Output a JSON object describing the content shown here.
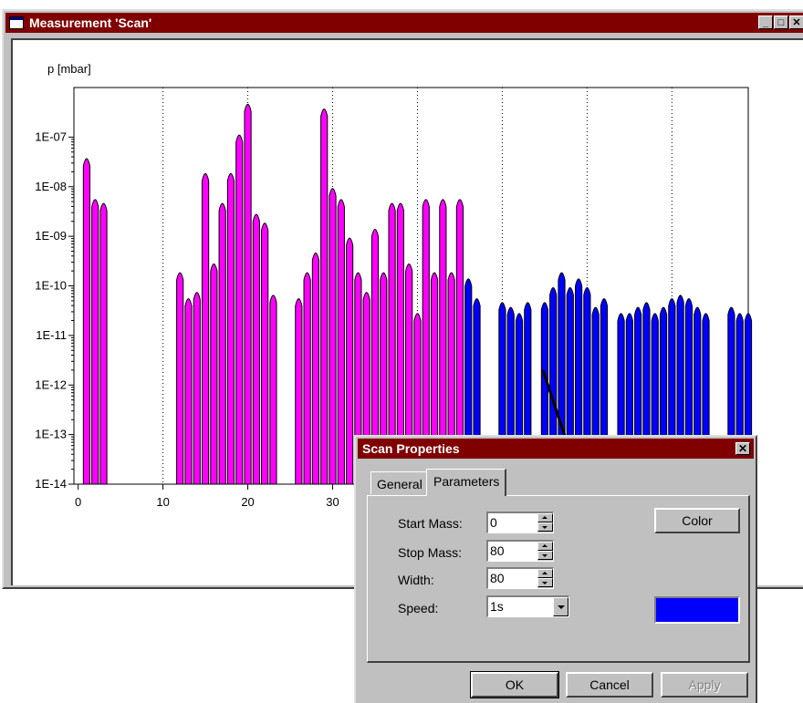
{
  "window": {
    "title": "Measurement 'Scan'",
    "min_label": "_",
    "max_label": "□",
    "close_label": "✕"
  },
  "chart_data": {
    "type": "bar",
    "ylabel": "p [mbar]",
    "xlabel": "",
    "y_scale": "log",
    "ylim": [
      1e-14,
      1e-06
    ],
    "xlim": [
      -0.5,
      79
    ],
    "y_ticks": [
      "1E-14",
      "1E-13",
      "1E-12",
      "1E-11",
      "1E-10",
      "1E-09",
      "1E-08",
      "1E-07"
    ],
    "x_ticks": [
      "0",
      "10",
      "20",
      "30"
    ],
    "grid": "dotted vertical lines every 10 mass units",
    "series": [
      {
        "color": "#ff00ff",
        "points": [
          [
            1,
            4e-08
          ],
          [
            2,
            6e-09
          ],
          [
            3,
            5e-09
          ],
          [
            12,
            2e-10
          ],
          [
            13,
            6e-11
          ],
          [
            14,
            8e-11
          ],
          [
            15,
            2e-08
          ],
          [
            16,
            3e-10
          ],
          [
            17,
            5e-09
          ],
          [
            18,
            2e-08
          ],
          [
            19,
            1.2e-07
          ],
          [
            20,
            5e-07
          ],
          [
            21,
            3e-09
          ],
          [
            22,
            2e-09
          ],
          [
            23,
            7e-11
          ],
          [
            26,
            6e-11
          ],
          [
            27,
            2e-10
          ],
          [
            28,
            5e-10
          ],
          [
            29,
            4e-07
          ],
          [
            30,
            1e-08
          ],
          [
            31,
            6e-09
          ],
          [
            32,
            1e-09
          ],
          [
            33,
            2e-10
          ],
          [
            34,
            8e-11
          ],
          [
            35,
            1.5e-09
          ],
          [
            36,
            2e-10
          ],
          [
            37,
            5e-09
          ],
          [
            38,
            5e-09
          ],
          [
            39,
            3e-10
          ],
          [
            40,
            3e-11
          ],
          [
            41,
            6e-09
          ],
          [
            42,
            2e-10
          ],
          [
            43,
            6e-09
          ],
          [
            44,
            2e-10
          ],
          [
            45,
            6e-09
          ]
        ]
      },
      {
        "color": "#0000ff",
        "points": [
          [
            46,
            1.5e-10
          ],
          [
            47,
            6e-11
          ],
          [
            50,
            5e-11
          ],
          [
            51,
            4e-11
          ],
          [
            52,
            3e-11
          ],
          [
            53,
            5e-11
          ],
          [
            55,
            5e-11
          ],
          [
            56,
            1e-10
          ],
          [
            57,
            2e-10
          ],
          [
            58,
            1e-10
          ],
          [
            59,
            1.5e-10
          ],
          [
            60,
            1e-10
          ],
          [
            61,
            4e-11
          ],
          [
            62,
            6e-11
          ],
          [
            64,
            3e-11
          ],
          [
            65,
            3e-11
          ],
          [
            66,
            4e-11
          ],
          [
            67,
            5e-11
          ],
          [
            68,
            3e-11
          ],
          [
            69,
            4e-11
          ],
          [
            70,
            6e-11
          ],
          [
            71,
            7e-11
          ],
          [
            72,
            6e-11
          ],
          [
            73,
            4e-11
          ],
          [
            74,
            3e-11
          ],
          [
            77,
            4e-11
          ],
          [
            78,
            3e-11
          ],
          [
            79,
            3e-11
          ]
        ]
      }
    ]
  },
  "dialog": {
    "title": "Scan Properties",
    "close_label": "✕",
    "tabs": [
      "General",
      "Parameters"
    ],
    "active_tab": "Parameters",
    "fields": [
      {
        "label": "Start Mass:",
        "value": "0"
      },
      {
        "label": "Stop Mass:",
        "value": "80"
      },
      {
        "label": "Width:",
        "value": "80"
      }
    ],
    "speed": {
      "label": "Speed:",
      "value": "1s"
    },
    "color_button": "Color",
    "color_value": "#0000ff",
    "buttons": {
      "ok": "OK",
      "cancel": "Cancel",
      "apply": "Apply"
    }
  }
}
